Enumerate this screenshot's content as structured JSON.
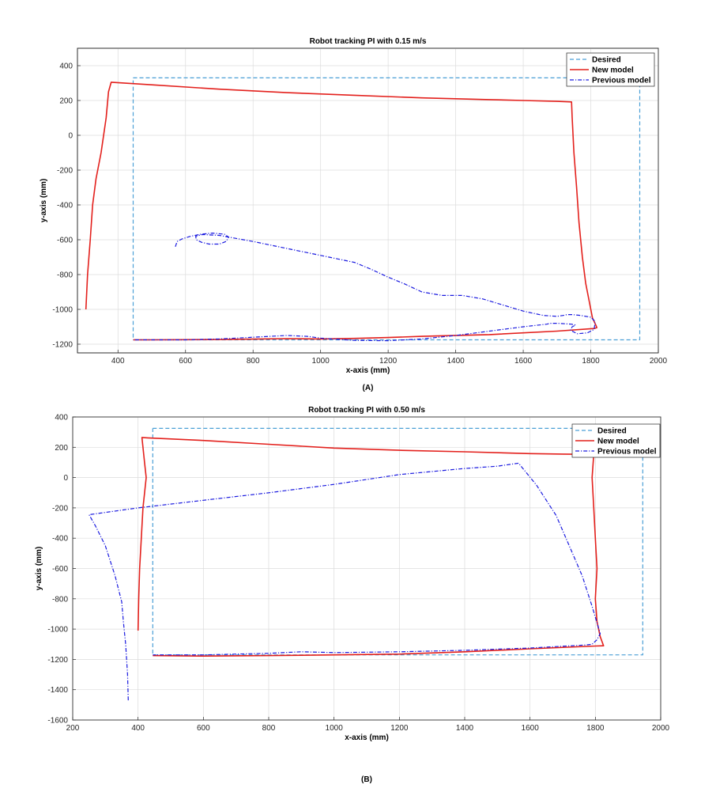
{
  "chart_data": [
    {
      "type": "line",
      "title": "Robot tracking PI with 0.15 m/s",
      "caption": "(A)",
      "xlabel": "x-axis (mm)",
      "ylabel": "y-axis (mm)",
      "xlim": [
        280,
        2000
      ],
      "ylim": [
        -1250,
        500
      ],
      "xticks": [
        400,
        600,
        800,
        1000,
        1200,
        1400,
        1600,
        1800,
        2000
      ],
      "yticks": [
        400,
        200,
        0,
        -200,
        -400,
        -600,
        -800,
        -1000,
        -1200
      ],
      "grid": true,
      "legend_position": "top-right",
      "series": [
        {
          "name": "Desired",
          "color": "#4a9fd6",
          "style": "dashed",
          "x": [
            445,
            1945,
            1945,
            445,
            445
          ],
          "y": [
            330,
            330,
            -1175,
            -1175,
            330
          ]
        },
        {
          "name": "New model",
          "color": "#e3201c",
          "style": "solid",
          "x": [
            305,
            310,
            318,
            325,
            335,
            350,
            365,
            372,
            380,
            500,
            700,
            900,
            1100,
            1300,
            1500,
            1600,
            1700,
            1743,
            1745,
            1750,
            1758,
            1765,
            1775,
            1785,
            1795,
            1805,
            1815,
            1818,
            1810,
            1700,
            1500,
            1300,
            1200,
            1100,
            1000,
            900,
            800,
            700,
            600,
            500,
            445
          ],
          "y": [
            -1000,
            -800,
            -600,
            -400,
            -250,
            -100,
            100,
            250,
            305,
            290,
            265,
            245,
            230,
            215,
            205,
            200,
            195,
            192,
            100,
            -100,
            -300,
            -500,
            -700,
            -850,
            -950,
            -1050,
            -1090,
            -1105,
            -1110,
            -1125,
            -1145,
            -1155,
            -1162,
            -1167,
            -1170,
            -1168,
            -1171,
            -1173,
            -1174,
            -1175,
            -1175
          ]
        },
        {
          "name": "Previous model",
          "color": "#1a1adf",
          "style": "dashdot",
          "x": [
            570,
            575,
            590,
            615,
            645,
            680,
            715,
            728,
            720,
            700,
            670,
            648,
            632,
            630,
            650,
            700,
            800,
            900,
            1000,
            1100,
            1150,
            1200,
            1250,
            1300,
            1360,
            1420,
            1480,
            1540,
            1600,
            1660,
            1700,
            1718,
            1730,
            1745,
            1770,
            1800,
            1813,
            1810,
            1790,
            1760,
            1740,
            1745,
            1755,
            1742,
            1700,
            1680,
            1670,
            1600,
            1500,
            1400,
            1300,
            1200,
            1100,
            1000,
            960,
            900,
            800,
            700,
            600,
            500,
            445
          ],
          "y": [
            -640,
            -610,
            -595,
            -580,
            -568,
            -562,
            -568,
            -585,
            -610,
            -625,
            -625,
            -615,
            -600,
            -580,
            -570,
            -575,
            -610,
            -650,
            -690,
            -730,
            -770,
            -815,
            -855,
            -900,
            -920,
            -920,
            -940,
            -975,
            -1010,
            -1035,
            -1040,
            -1035,
            -1030,
            -1030,
            -1035,
            -1045,
            -1070,
            -1115,
            -1135,
            -1140,
            -1120,
            -1100,
            -1090,
            -1085,
            -1080,
            -1080,
            -1085,
            -1100,
            -1125,
            -1150,
            -1170,
            -1180,
            -1178,
            -1165,
            -1155,
            -1150,
            -1160,
            -1170,
            -1175,
            -1175,
            -1175
          ]
        }
      ]
    },
    {
      "type": "line",
      "title": "Robot tracking PI with 0.50 m/s",
      "caption": "(B)",
      "xlabel": "x-axis (mm)",
      "ylabel": "y-axis (mm)",
      "xlim": [
        200,
        2000
      ],
      "ylim": [
        -1600,
        400
      ],
      "xticks": [
        200,
        400,
        600,
        800,
        1000,
        1200,
        1400,
        1600,
        1800,
        2000
      ],
      "yticks": [
        400,
        200,
        0,
        -200,
        -400,
        -600,
        -800,
        -1000,
        -1200,
        -1400,
        -1600
      ],
      "grid": true,
      "legend_position": "top-right",
      "series": [
        {
          "name": "Desired",
          "color": "#4a9fd6",
          "style": "dashed",
          "x": [
            445,
            1945,
            1945,
            445,
            445
          ],
          "y": [
            325,
            325,
            -1170,
            -1170,
            325
          ]
        },
        {
          "name": "New model",
          "color": "#e3201c",
          "style": "solid",
          "x": [
            400,
            402,
            405,
            410,
            415,
            425,
            420,
            415,
            412,
            430,
            600,
            800,
            1000,
            1200,
            1400,
            1600,
            1700,
            1795,
            1790,
            1795,
            1800,
            1805,
            1800,
            1805,
            1815,
            1825,
            1800,
            1600,
            1400,
            1200,
            1000,
            800,
            600,
            445
          ],
          "y": [
            -1010,
            -800,
            -600,
            -400,
            -200,
            0,
            100,
            200,
            265,
            262,
            245,
            220,
            195,
            180,
            170,
            158,
            155,
            153,
            0,
            -200,
            -400,
            -600,
            -800,
            -950,
            -1050,
            -1110,
            -1112,
            -1130,
            -1150,
            -1165,
            -1170,
            -1175,
            -1178,
            -1175
          ]
        },
        {
          "name": "Previous model",
          "color": "#1a1adf",
          "style": "dashdot",
          "x": [
            370,
            368,
            362,
            355,
            350,
            330,
            300,
            270,
            250,
            400,
            600,
            800,
            1000,
            1200,
            1400,
            1500,
            1565,
            1620,
            1680,
            1720,
            1760,
            1790,
            1815,
            1805,
            1790,
            1770,
            1600,
            1400,
            1200,
            1000,
            900,
            800,
            600,
            445
          ],
          "y": [
            -1470,
            -1300,
            -1100,
            -950,
            -820,
            -650,
            -450,
            -320,
            -245,
            -200,
            -150,
            -100,
            -45,
            20,
            60,
            75,
            95,
            -50,
            -250,
            -450,
            -650,
            -850,
            -1030,
            -1070,
            -1100,
            -1105,
            -1125,
            -1140,
            -1150,
            -1155,
            -1150,
            -1160,
            -1170,
            -1170
          ]
        }
      ]
    }
  ]
}
